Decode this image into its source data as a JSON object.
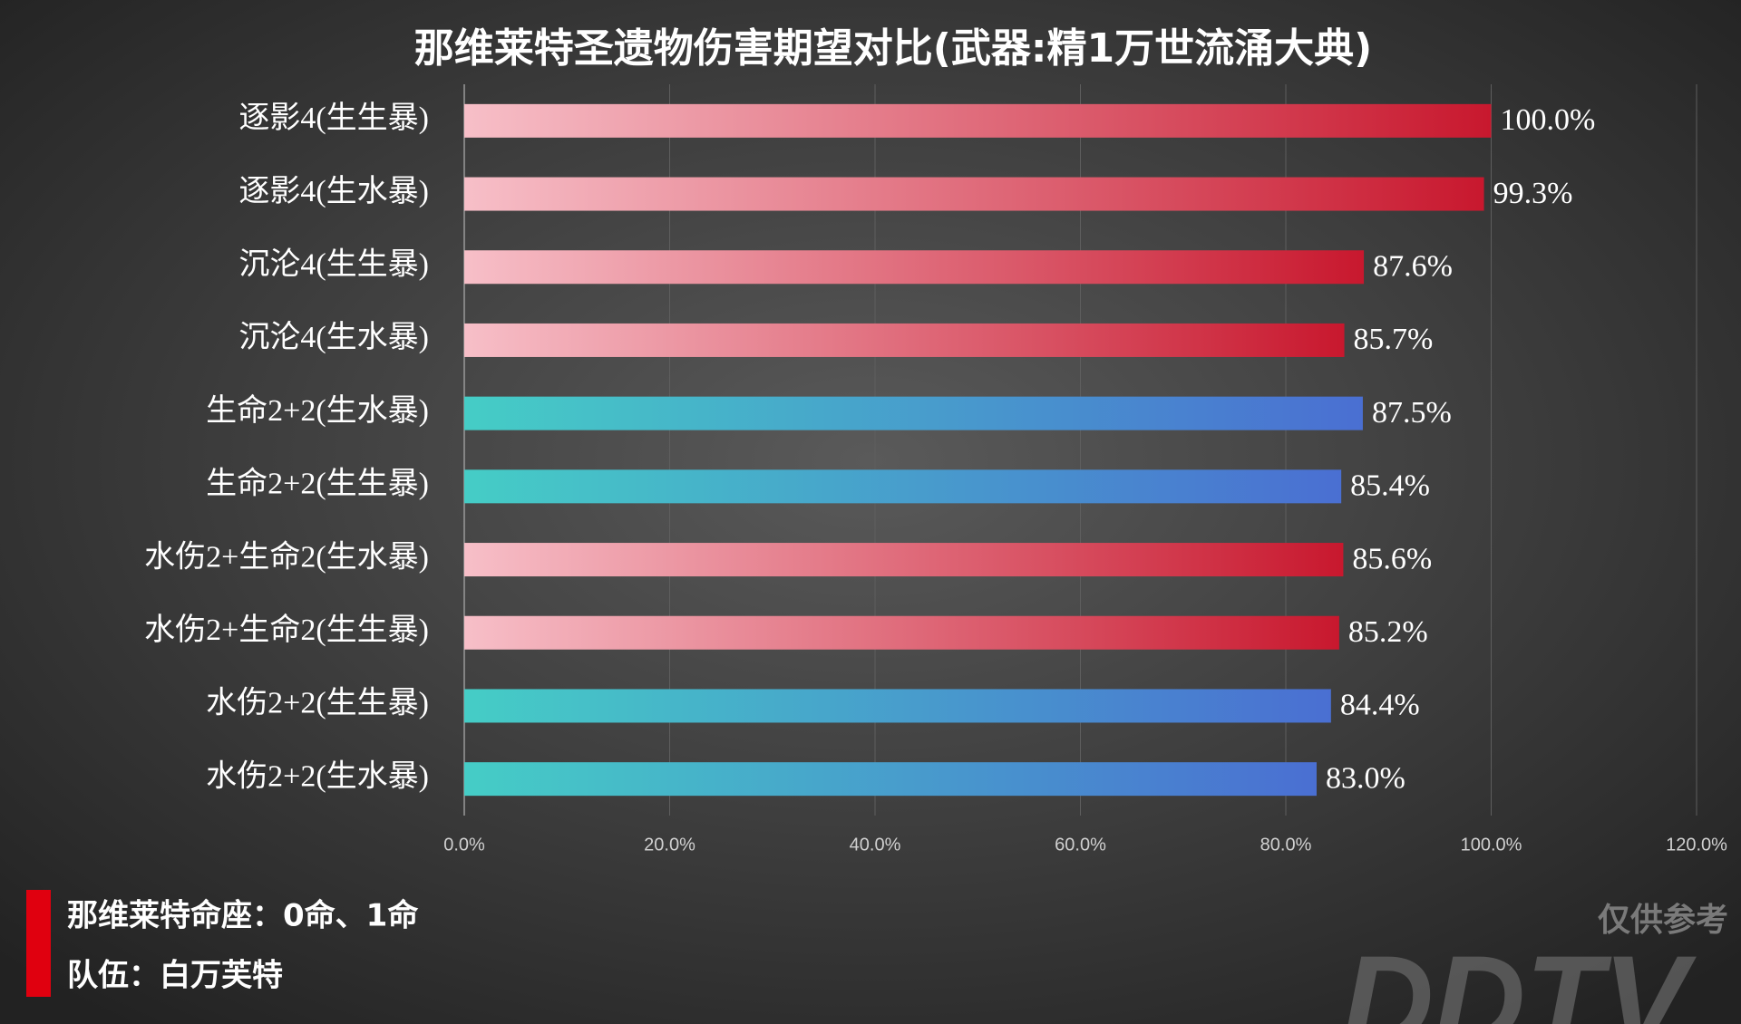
{
  "chart_data": {
    "type": "hbar",
    "title": "那维莱特圣遗物伤害期望对比(武器:精1万世流涌大典)",
    "categories": [
      "逐影4(生生暴)",
      "逐影4(生水暴)",
      "沉沦4(生生暴)",
      "沉沦4(生水暴)",
      "生命2+2(生水暴)",
      "生命2+2(生生暴)",
      "水伤2+生命2(生水暴)",
      "水伤2+生命2(生生暴)",
      "水伤2+2(生生暴)",
      "水伤2+2(生水暴)"
    ],
    "values": [
      100.0,
      99.3,
      87.6,
      85.7,
      87.5,
      85.4,
      85.6,
      85.2,
      84.4,
      83.0
    ],
    "value_labels": [
      "100.0%",
      "99.3%",
      "87.6%",
      "85.7%",
      "87.5%",
      "85.4%",
      "85.6%",
      "85.2%",
      "84.4%",
      "83.0%"
    ],
    "colors": [
      [
        "#f7bfc8",
        "#c8182e"
      ],
      [
        "#f7bfc8",
        "#c8182e"
      ],
      [
        "#f7bfc8",
        "#c8182e"
      ],
      [
        "#f7bfc8",
        "#c8182e"
      ],
      [
        "#45cdc6",
        "#4a6fd2"
      ],
      [
        "#45cdc6",
        "#4a6fd2"
      ],
      [
        "#f7bfc8",
        "#c8182e"
      ],
      [
        "#f7bfc8",
        "#c8182e"
      ],
      [
        "#45cdc6",
        "#4a6fd2"
      ],
      [
        "#45cdc6",
        "#4a6fd2"
      ]
    ],
    "xlim": [
      0,
      120
    ],
    "xticks": [
      {
        "value": 0,
        "label": "0.0%"
      },
      {
        "value": 20,
        "label": "20.0%"
      },
      {
        "value": 40,
        "label": "40.0%"
      },
      {
        "value": 60,
        "label": "60.0%"
      },
      {
        "value": 80,
        "label": "80.0%"
      },
      {
        "value": 100,
        "label": "100.0%"
      },
      {
        "value": 120,
        "label": "120.0%"
      }
    ],
    "grid": true
  },
  "notes": [
    "那维莱特命座：0命、1命",
    "队伍：白万芙特"
  ],
  "watermark": {
    "caption": "仅供参考",
    "brand": "DDTV"
  }
}
